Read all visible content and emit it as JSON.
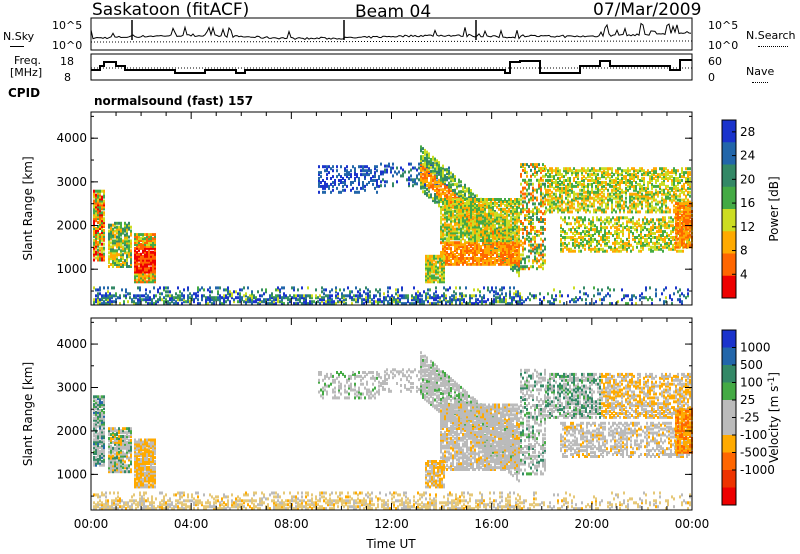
{
  "header": {
    "station": "Saskatoon (fitACF)",
    "beam": "Beam 04",
    "date": "07/Mar/2009"
  },
  "noise_panel": {
    "left_label": "N.Sky",
    "left_ticks": [
      "10^5",
      "10^0"
    ],
    "right_label": "N.Search",
    "right_ticks": [
      "10^5",
      "10^0"
    ]
  },
  "freq_panel": {
    "left_label_line1": "Freq.",
    "left_label_line2": "[MHz]",
    "left_ticks": [
      "18",
      "8"
    ],
    "right_label": "Nave",
    "right_ticks": [
      "60",
      "0"
    ]
  },
  "cpid": {
    "label": "CPID",
    "value": "normalsound (fast) 157"
  },
  "colors": {
    "power_scale": [
      "#1a33cc",
      "#2266aa",
      "#338866",
      "#44aa44",
      "#ccdd22",
      "#ffaa00",
      "#ff6600",
      "#ee0000"
    ],
    "velocity_scale": [
      "#1a33cc",
      "#2266aa",
      "#338866",
      "#44aa44",
      "#bbbbbb",
      "#bbbbbb",
      "#ffaa00",
      "#ff6600",
      "#ee3300",
      "#ee0000"
    ],
    "ground_scatter": "#bbbbbb"
  },
  "chart_data": [
    {
      "type": "heatmap",
      "name": "power",
      "xlabel": "",
      "ylabel": "Slant Range [km]",
      "x_range_hours": [
        0,
        24
      ],
      "ylim": [
        180,
        4600
      ],
      "y_ticks": [
        "1000",
        "2000",
        "3000",
        "4000"
      ],
      "colorbar_label": "Power [dB]",
      "colorbar_ticks": [
        "4",
        "8",
        "12",
        "16",
        "20",
        "24",
        "28"
      ],
      "colorbar_range": [
        0,
        30
      ]
    },
    {
      "type": "heatmap",
      "name": "velocity",
      "xlabel": "Time UT",
      "ylabel": "Slant Range [km]",
      "x_range_hours": [
        0,
        24
      ],
      "x_ticks": [
        "00:00",
        "04:00",
        "08:00",
        "12:00",
        "16:00",
        "20:00",
        "00:00"
      ],
      "ylim": [
        180,
        4600
      ],
      "y_ticks": [
        "1000",
        "2000",
        "3000",
        "4000"
      ],
      "colorbar_label": "Velocity [m s",
      "colorbar_label_exp": "-1",
      "colorbar_label_tail": "]",
      "colorbar_ticks": [
        "1000",
        "500",
        "100",
        "25",
        "-25",
        "-100",
        "-500",
        "-1000"
      ],
      "colorbar_range": [
        -1500,
        1500
      ]
    }
  ]
}
